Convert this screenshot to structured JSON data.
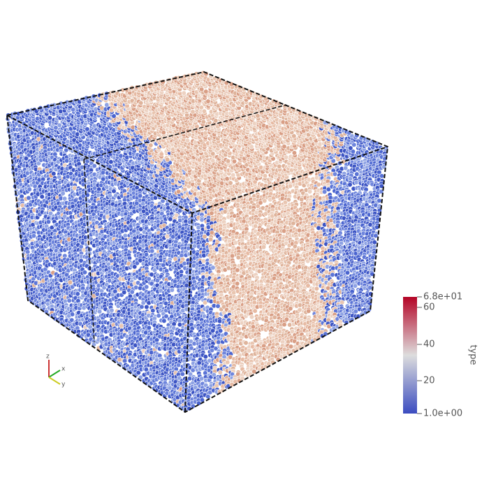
{
  "colorbar": {
    "title": "type",
    "max_label": "6.8e+01",
    "tick_labels": [
      "60",
      "40",
      "20"
    ],
    "min_label": "1.0e+00"
  },
  "axes_triad": {
    "labels": [
      "z",
      "x",
      "y"
    ]
  }
}
